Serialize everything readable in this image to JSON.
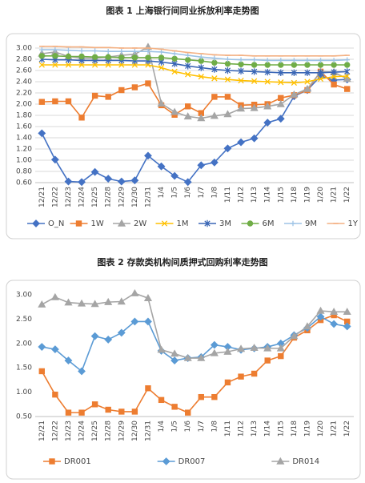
{
  "chart_data": [
    {
      "type": "line",
      "title": "图表 1 上海银行间同业拆放利率走势图",
      "categories": [
        "12/21",
        "12/22",
        "12/23",
        "12/24",
        "12/25",
        "12/28",
        "12/29",
        "12/30",
        "12/31",
        "1/4",
        "1/5",
        "1/6",
        "1/7",
        "1/8",
        "1/11",
        "1/12",
        "1/13",
        "1/14",
        "1/15",
        "1/18",
        "1/19",
        "1/20",
        "1/21",
        "1/22"
      ],
      "ylim": [
        0.6,
        3.0
      ],
      "yticks": [
        {
          "value": 0.6,
          "label": "0.60"
        },
        {
          "value": 0.8,
          "label": "0.80"
        },
        {
          "value": 1.0,
          "label": "1.00"
        },
        {
          "value": 1.2,
          "label": "1.20"
        },
        {
          "value": 1.4,
          "label": "1.40"
        },
        {
          "value": 1.6,
          "label": "1.60"
        },
        {
          "value": 1.8,
          "label": "1.80"
        },
        {
          "value": 2.0,
          "label": "2.00"
        },
        {
          "value": 2.2,
          "label": "2.20"
        },
        {
          "value": 2.4,
          "label": "2.40"
        },
        {
          "value": 2.6,
          "label": "2.60"
        },
        {
          "value": 2.8,
          "label": "2.80"
        },
        {
          "value": 3.0,
          "label": "3.00"
        }
      ],
      "grid": true,
      "series": [
        {
          "name": "O_N",
          "color": "#4472c4",
          "marker": "diamond",
          "values": [
            1.48,
            1.01,
            0.62,
            0.61,
            0.79,
            0.67,
            0.62,
            0.64,
            1.08,
            0.89,
            0.72,
            0.61,
            0.91,
            0.96,
            1.21,
            1.32,
            1.39,
            1.67,
            1.74,
            2.14,
            2.25,
            2.5,
            2.43,
            2.44
          ]
        },
        {
          "name": "1W",
          "color": "#ed7d31",
          "marker": "square",
          "values": [
            2.04,
            2.05,
            2.05,
            1.76,
            2.15,
            2.13,
            2.25,
            2.3,
            2.37,
            1.98,
            1.81,
            1.96,
            1.84,
            2.13,
            2.13,
            1.98,
            1.99,
            2.0,
            2.11,
            2.16,
            2.25,
            2.58,
            2.35,
            2.27
          ]
        },
        {
          "name": "2W",
          "color": "#a5a5a5",
          "marker": "triangle",
          "values": [
            2.9,
            2.93,
            2.85,
            2.82,
            2.82,
            2.84,
            2.87,
            2.89,
            3.02,
            2.01,
            1.86,
            1.78,
            1.75,
            1.79,
            1.82,
            1.92,
            1.93,
            1.96,
            2.0,
            2.17,
            2.27,
            2.58,
            2.57,
            2.45
          ]
        },
        {
          "name": "1M",
          "color": "#ffc000",
          "marker": "x",
          "values": [
            2.7,
            2.7,
            2.7,
            2.7,
            2.7,
            2.7,
            2.7,
            2.7,
            2.7,
            2.65,
            2.58,
            2.53,
            2.49,
            2.46,
            2.44,
            2.42,
            2.41,
            2.4,
            2.39,
            2.38,
            2.4,
            2.45,
            2.49,
            2.5
          ]
        },
        {
          "name": "3M",
          "color": "#3a66b5",
          "marker": "star",
          "values": [
            2.8,
            2.79,
            2.79,
            2.78,
            2.78,
            2.78,
            2.78,
            2.77,
            2.77,
            2.75,
            2.72,
            2.68,
            2.65,
            2.62,
            2.6,
            2.59,
            2.58,
            2.57,
            2.56,
            2.56,
            2.56,
            2.56,
            2.57,
            2.58
          ]
        },
        {
          "name": "6M",
          "color": "#70ad47",
          "marker": "circle",
          "values": [
            2.86,
            2.86,
            2.85,
            2.85,
            2.84,
            2.84,
            2.83,
            2.83,
            2.83,
            2.83,
            2.81,
            2.79,
            2.77,
            2.74,
            2.72,
            2.71,
            2.7,
            2.7,
            2.7,
            2.7,
            2.7,
            2.7,
            2.7,
            2.7
          ]
        },
        {
          "name": "9M",
          "color": "#9dc3e6",
          "marker": "plus",
          "values": [
            2.97,
            2.97,
            2.96,
            2.95,
            2.95,
            2.94,
            2.94,
            2.94,
            2.94,
            2.93,
            2.9,
            2.87,
            2.84,
            2.82,
            2.8,
            2.79,
            2.79,
            2.78,
            2.78,
            2.78,
            2.78,
            2.78,
            2.78,
            2.79
          ]
        },
        {
          "name": "1Y",
          "color": "#f4b183",
          "marker": "dash",
          "values": [
            3.03,
            3.03,
            3.02,
            3.02,
            3.01,
            3.01,
            3.0,
            3.0,
            3.0,
            2.98,
            2.95,
            2.92,
            2.9,
            2.88,
            2.87,
            2.87,
            2.86,
            2.86,
            2.86,
            2.86,
            2.86,
            2.86,
            2.86,
            2.87
          ]
        }
      ]
    },
    {
      "type": "line",
      "title": "图表 2 存款类机构间质押式回购利率走势图",
      "categories": [
        "12/21",
        "12/22",
        "12/23",
        "12/24",
        "12/25",
        "12/28",
        "12/29",
        "12/30",
        "12/31",
        "1/4",
        "1/5",
        "1/6",
        "1/7",
        "1/8",
        "1/11",
        "1/12",
        "1/13",
        "1/14",
        "1/15",
        "1/18",
        "1/19",
        "1/20",
        "1/21",
        "1/22"
      ],
      "ylim": [
        0.5,
        3.0
      ],
      "yticks": [
        {
          "value": 0.5,
          "label": "0.50"
        },
        {
          "value": 1.0,
          "label": "1.00"
        },
        {
          "value": 1.5,
          "label": "1.50"
        },
        {
          "value": 2.0,
          "label": "2.00"
        },
        {
          "value": 2.5,
          "label": "2.50"
        },
        {
          "value": 3.0,
          "label": "3.00"
        }
      ],
      "grid": false,
      "series": [
        {
          "name": "DR001",
          "color": "#ed7d31",
          "marker": "square",
          "values": [
            1.43,
            0.95,
            0.58,
            0.58,
            0.75,
            0.64,
            0.6,
            0.6,
            1.08,
            0.84,
            0.7,
            0.58,
            0.9,
            0.9,
            1.2,
            1.32,
            1.38,
            1.65,
            1.74,
            2.12,
            2.27,
            2.48,
            2.58,
            2.45
          ]
        },
        {
          "name": "DR007",
          "color": "#5b9bd5",
          "marker": "diamond",
          "values": [
            1.93,
            1.88,
            1.65,
            1.43,
            2.15,
            2.08,
            2.22,
            2.45,
            2.45,
            1.85,
            1.65,
            1.7,
            1.72,
            1.97,
            1.93,
            1.87,
            1.9,
            1.93,
            2.0,
            2.17,
            2.32,
            2.55,
            2.4,
            2.35
          ]
        },
        {
          "name": "DR014",
          "color": "#a5a5a5",
          "marker": "triangle",
          "values": [
            2.8,
            2.95,
            2.84,
            2.82,
            2.81,
            2.85,
            2.86,
            3.03,
            2.93,
            1.87,
            1.79,
            1.7,
            1.7,
            1.8,
            1.83,
            1.89,
            1.91,
            1.9,
            1.9,
            2.15,
            2.35,
            2.67,
            2.65,
            2.65
          ]
        }
      ]
    }
  ]
}
